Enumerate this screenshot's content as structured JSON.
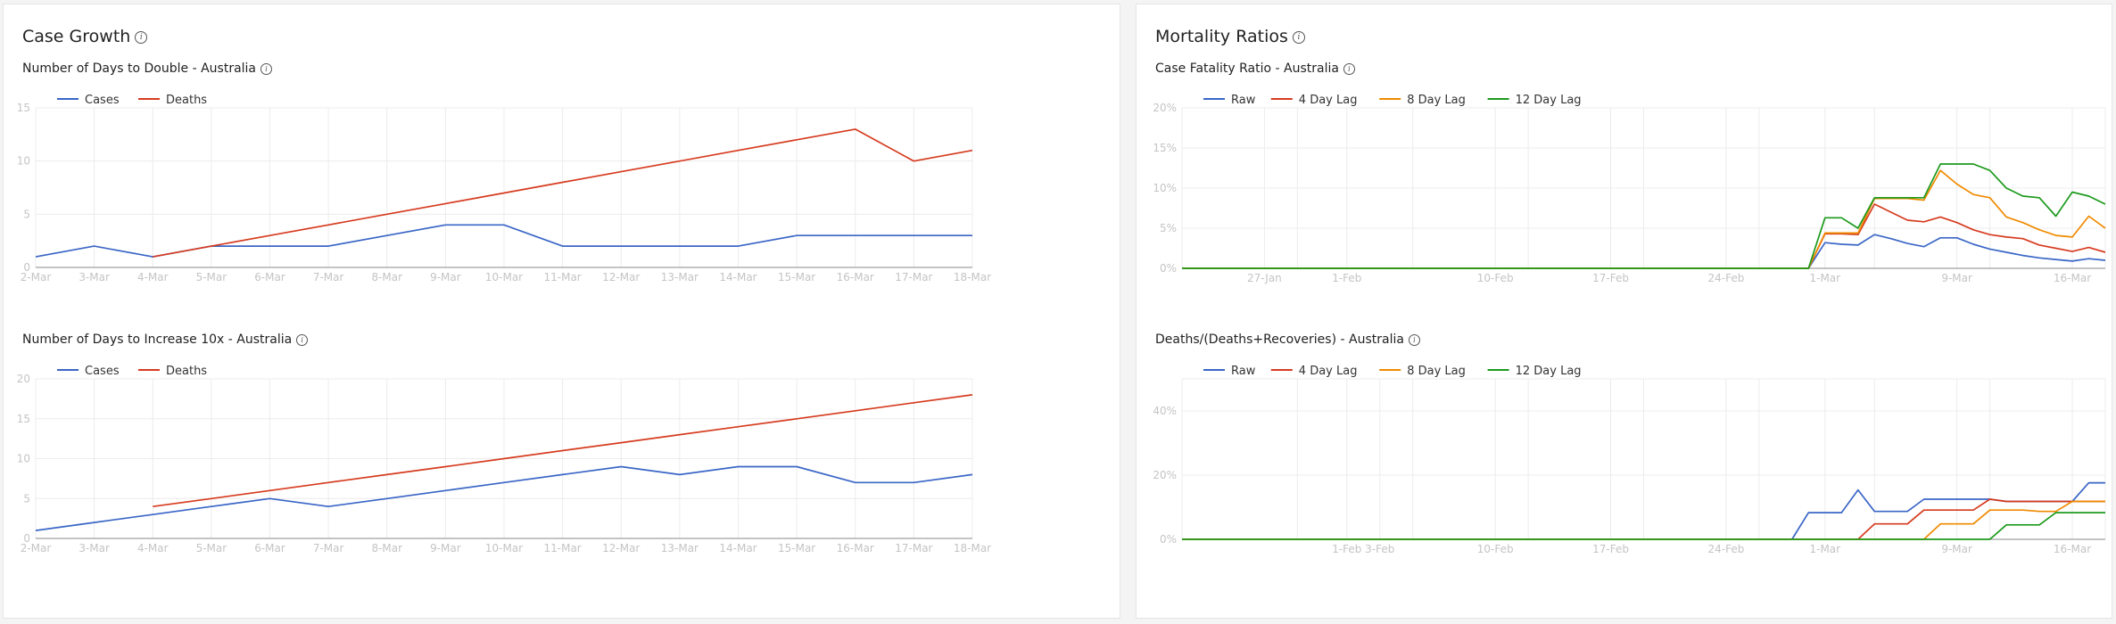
{
  "colors": {
    "blue": "#3a66c6",
    "red": "#d63b1f",
    "orange": "#f08a00",
    "green": "#1c9a1c"
  },
  "icons": {
    "info": "info-circle-icon",
    "info_glyph": "i"
  },
  "left_panel": {
    "title": "Case Growth"
  },
  "right_panel": {
    "title": "Mortality Ratios"
  },
  "chart_data": [
    {
      "id": "double",
      "type": "line",
      "title": "Number of Days to Double - Australia",
      "categories": [
        "2-Mar",
        "3-Mar",
        "4-Mar",
        "5-Mar",
        "6-Mar",
        "7-Mar",
        "8-Mar",
        "9-Mar",
        "10-Mar",
        "11-Mar",
        "12-Mar",
        "13-Mar",
        "14-Mar",
        "15-Mar",
        "16-Mar",
        "17-Mar",
        "18-Mar"
      ],
      "ylim": [
        0,
        15
      ],
      "yticks": [
        0,
        5,
        10,
        15
      ],
      "grid": true,
      "legend": "top-left",
      "series": [
        {
          "name": "Cases",
          "color": "blue",
          "values": [
            1,
            2,
            1,
            2,
            2,
            2,
            3,
            4,
            4,
            2,
            2,
            2,
            2,
            3,
            3,
            3,
            3
          ]
        },
        {
          "name": "Deaths",
          "color": "red",
          "values": [
            null,
            null,
            1,
            2,
            3,
            4,
            5,
            6,
            7,
            8,
            9,
            10,
            11,
            12,
            13,
            10,
            11
          ]
        }
      ]
    },
    {
      "id": "tenx",
      "type": "line",
      "title": "Number of Days to Increase 10x - Australia",
      "categories": [
        "2-Mar",
        "3-Mar",
        "4-Mar",
        "5-Mar",
        "6-Mar",
        "7-Mar",
        "8-Mar",
        "9-Mar",
        "10-Mar",
        "11-Mar",
        "12-Mar",
        "13-Mar",
        "14-Mar",
        "15-Mar",
        "16-Mar",
        "17-Mar",
        "18-Mar"
      ],
      "ylim": [
        0,
        20
      ],
      "yticks": [
        0,
        5,
        10,
        15,
        20
      ],
      "grid": true,
      "legend": "top-left",
      "series": [
        {
          "name": "Cases",
          "color": "blue",
          "values": [
            1,
            2,
            3,
            4,
            5,
            4,
            5,
            6,
            7,
            8,
            9,
            8,
            9,
            9,
            7,
            7,
            8
          ]
        },
        {
          "name": "Deaths",
          "color": "red",
          "values": [
            null,
            null,
            4,
            5,
            6,
            7,
            8,
            9,
            10,
            11,
            12,
            13,
            14,
            15,
            16,
            17,
            18
          ]
        }
      ]
    },
    {
      "id": "cfr",
      "type": "line",
      "title": "Case Fatality Ratio - Australia",
      "x_start": "22-Jan",
      "x_days": 57,
      "xticks": [
        {
          "label": "27-Jan",
          "day": 5
        },
        {
          "label": "1-Feb",
          "day": 10
        },
        {
          "label": "10-Feb",
          "day": 19
        },
        {
          "label": "17-Feb",
          "day": 26
        },
        {
          "label": "24-Feb",
          "day": 33
        },
        {
          "label": "1-Mar",
          "day": 39
        },
        {
          "label": "9-Mar",
          "day": 47
        },
        {
          "label": "16-Mar",
          "day": 54
        }
      ],
      "ylim": [
        0,
        20
      ],
      "yticks": [
        0,
        5,
        10,
        15,
        20
      ],
      "ytick_suffix": "%",
      "grid": true,
      "legend": "top-left",
      "series": [
        {
          "name": "Raw",
          "color": "blue",
          "points": [
            [
              0,
              0
            ],
            [
              38,
              0
            ],
            [
              39,
              3.2
            ],
            [
              40,
              3.0
            ],
            [
              41,
              2.9
            ],
            [
              42,
              4.2
            ],
            [
              43,
              3.7
            ],
            [
              44,
              3.1
            ],
            [
              45,
              2.7
            ],
            [
              46,
              3.8
            ],
            [
              47,
              3.8
            ],
            [
              48,
              3.0
            ],
            [
              49,
              2.4
            ],
            [
              50,
              2.0
            ],
            [
              51,
              1.6
            ],
            [
              52,
              1.3
            ],
            [
              53,
              1.1
            ],
            [
              54,
              0.9
            ],
            [
              55,
              1.2
            ],
            [
              56,
              1.0
            ]
          ]
        },
        {
          "name": "4 Day Lag",
          "color": "red",
          "points": [
            [
              0,
              0
            ],
            [
              38,
              0
            ],
            [
              39,
              4.3
            ],
            [
              40,
              4.3
            ],
            [
              41,
              4.2
            ],
            [
              42,
              8.0
            ],
            [
              43,
              7.0
            ],
            [
              44,
              6.0
            ],
            [
              45,
              5.8
            ],
            [
              46,
              6.4
            ],
            [
              47,
              5.7
            ],
            [
              48,
              4.8
            ],
            [
              49,
              4.2
            ],
            [
              50,
              3.9
            ],
            [
              51,
              3.7
            ],
            [
              52,
              2.9
            ],
            [
              53,
              2.5
            ],
            [
              54,
              2.1
            ],
            [
              55,
              2.6
            ],
            [
              56,
              2.0
            ]
          ]
        },
        {
          "name": "8 Day Lag",
          "color": "orange",
          "points": [
            [
              0,
              0
            ],
            [
              38,
              0
            ],
            [
              39,
              4.4
            ],
            [
              40,
              4.4
            ],
            [
              41,
              4.4
            ],
            [
              42,
              8.7
            ],
            [
              43,
              8.7
            ],
            [
              44,
              8.7
            ],
            [
              45,
              8.5
            ],
            [
              46,
              12.2
            ],
            [
              47,
              10.5
            ],
            [
              48,
              9.2
            ],
            [
              49,
              8.8
            ],
            [
              50,
              6.4
            ],
            [
              51,
              5.7
            ],
            [
              52,
              4.8
            ],
            [
              53,
              4.1
            ],
            [
              54,
              3.9
            ],
            [
              55,
              6.5
            ],
            [
              56,
              5.0
            ]
          ]
        },
        {
          "name": "12 Day Lag",
          "color": "green",
          "points": [
            [
              0,
              0
            ],
            [
              38,
              0
            ],
            [
              39,
              6.3
            ],
            [
              40,
              6.3
            ],
            [
              41,
              5.0
            ],
            [
              42,
              8.8
            ],
            [
              43,
              8.8
            ],
            [
              44,
              8.8
            ],
            [
              45,
              8.8
            ],
            [
              46,
              13.0
            ],
            [
              47,
              13.0
            ],
            [
              48,
              13.0
            ],
            [
              49,
              12.2
            ],
            [
              50,
              10.0
            ],
            [
              51,
              9.0
            ],
            [
              52,
              8.8
            ],
            [
              53,
              6.5
            ],
            [
              54,
              9.5
            ],
            [
              55,
              9.0
            ],
            [
              56,
              8.0
            ]
          ]
        }
      ]
    },
    {
      "id": "recov",
      "type": "line",
      "title": "Deaths/(Deaths+Recoveries) - Australia",
      "x_start": "22-Jan",
      "x_days": 57,
      "xticks": [
        {
          "label": "1-Feb",
          "day": 10
        },
        {
          "label": "3-Feb",
          "day": 12
        },
        {
          "label": "10-Feb",
          "day": 19
        },
        {
          "label": "17-Feb",
          "day": 26
        },
        {
          "label": "24-Feb",
          "day": 33
        },
        {
          "label": "1-Mar",
          "day": 39
        },
        {
          "label": "9-Mar",
          "day": 47
        },
        {
          "label": "16-Mar",
          "day": 54
        }
      ],
      "ylim": [
        0,
        50
      ],
      "yticks": [
        0,
        20,
        40
      ],
      "ytick_suffix": "%",
      "grid": true,
      "legend": "top-left",
      "series": [
        {
          "name": "Raw",
          "color": "blue",
          "points": [
            [
              0,
              0
            ],
            [
              37,
              0
            ],
            [
              38,
              8.3
            ],
            [
              40,
              8.3
            ],
            [
              41,
              15.4
            ],
            [
              42,
              8.7
            ],
            [
              44,
              8.7
            ],
            [
              45,
              12.5
            ],
            [
              49,
              12.5
            ],
            [
              50,
              11.8
            ],
            [
              54,
              11.8
            ],
            [
              55,
              17.6
            ],
            [
              56,
              17.6
            ]
          ]
        },
        {
          "name": "4 Day Lag",
          "color": "red",
          "points": [
            [
              0,
              0
            ],
            [
              41,
              0
            ],
            [
              42,
              4.8
            ],
            [
              44,
              4.8
            ],
            [
              45,
              9.1
            ],
            [
              48,
              9.1
            ],
            [
              49,
              12.5
            ],
            [
              50,
              11.8
            ],
            [
              54,
              11.8
            ],
            [
              56,
              11.8
            ]
          ]
        },
        {
          "name": "8 Day Lag",
          "color": "orange",
          "points": [
            [
              0,
              0
            ],
            [
              45,
              0
            ],
            [
              46,
              4.8
            ],
            [
              48,
              4.8
            ],
            [
              49,
              9.1
            ],
            [
              51,
              9.1
            ],
            [
              52,
              8.7
            ],
            [
              53,
              8.7
            ],
            [
              54,
              11.8
            ],
            [
              56,
              11.8
            ]
          ]
        },
        {
          "name": "12 Day Lag",
          "color": "green",
          "points": [
            [
              0,
              0
            ],
            [
              49,
              0
            ],
            [
              50,
              4.5
            ],
            [
              52,
              4.5
            ],
            [
              53,
              8.3
            ],
            [
              56,
              8.3
            ]
          ]
        }
      ]
    }
  ]
}
